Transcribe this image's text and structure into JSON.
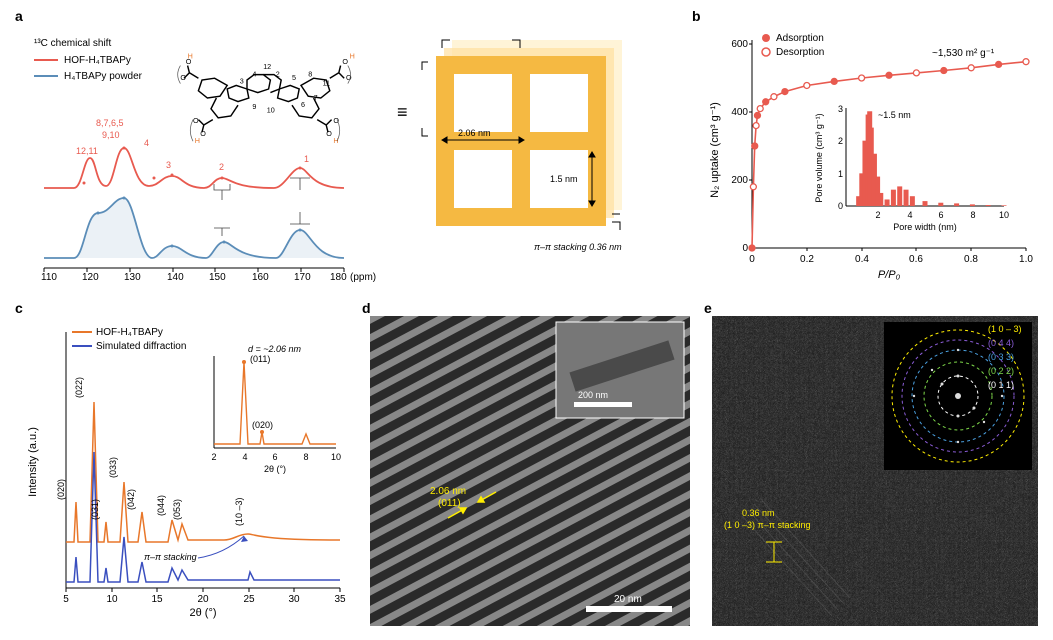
{
  "panel_a": {
    "label": "a",
    "title": "¹³C chemical shift",
    "legend": [
      {
        "label": "HOF-H₄TBAPy",
        "color": "#e85a4f"
      },
      {
        "label": "H₄TBAPy powder",
        "color": "#5b8db8"
      }
    ],
    "x_axis": {
      "label": "(ppm)",
      "min": 110,
      "max": 180,
      "ticks": [
        110,
        120,
        130,
        140,
        150,
        160,
        170,
        180
      ]
    },
    "top_peak_labels": [
      "12,11",
      "9,10",
      "4",
      "3",
      "2",
      "1"
    ],
    "group_label": "8,7,6,5",
    "schematic": {
      "cell_size": "2.06 nm",
      "pore_size": "1.5 nm",
      "stacking": "π–π stacking 0.36 nm",
      "atom_numbers": [
        "1",
        "2",
        "3",
        "4",
        "5",
        "6",
        "7",
        "8",
        "9",
        "10",
        "11",
        "12"
      ]
    },
    "colors": {
      "schematic_fill": "#f5b942",
      "schematic_glow": "#ffe9b0"
    }
  },
  "panel_b": {
    "label": "b",
    "legend": [
      {
        "label": "Adsorption",
        "color": "#e85a4f",
        "filled": true
      },
      {
        "label": "Desorption",
        "color": "#e85a4f",
        "filled": false
      }
    ],
    "surface_area": "~1,530 m² g⁻¹",
    "x_axis": {
      "label": "P/P₀",
      "min": 0,
      "max": 1.0,
      "ticks": [
        0,
        0.2,
        0.4,
        0.6,
        0.8,
        1.0
      ]
    },
    "y_axis": {
      "label": "N₂ uptake (cm³ g⁻¹)",
      "min": 0,
      "max": 600,
      "ticks": [
        0,
        200,
        400,
        600
      ]
    },
    "isotherm_points": [
      [
        0,
        0
      ],
      [
        0.005,
        180
      ],
      [
        0.01,
        300
      ],
      [
        0.015,
        360
      ],
      [
        0.02,
        390
      ],
      [
        0.03,
        410
      ],
      [
        0.05,
        430
      ],
      [
        0.08,
        445
      ],
      [
        0.12,
        460
      ],
      [
        0.2,
        478
      ],
      [
        0.3,
        490
      ],
      [
        0.4,
        500
      ],
      [
        0.5,
        508
      ],
      [
        0.6,
        515
      ],
      [
        0.7,
        522
      ],
      [
        0.8,
        530
      ],
      [
        0.9,
        540
      ],
      [
        1.0,
        548
      ]
    ],
    "inset": {
      "x_axis": {
        "label": "Pore width (nm)",
        "min": 0,
        "max": 10,
        "ticks": [
          2,
          4,
          6,
          8,
          10
        ]
      },
      "y_axis": {
        "label": "Pore volume (cm³ g⁻¹)",
        "min": 0,
        "max": 3,
        "ticks": [
          0,
          1,
          2,
          3
        ]
      },
      "peak_label": "~1.5 nm",
      "bars": [
        [
          0.8,
          0.3
        ],
        [
          1.0,
          1.0
        ],
        [
          1.2,
          2.0
        ],
        [
          1.4,
          2.8
        ],
        [
          1.5,
          2.9
        ],
        [
          1.6,
          2.4
        ],
        [
          1.8,
          1.6
        ],
        [
          2.0,
          0.9
        ],
        [
          2.2,
          0.4
        ],
        [
          2.6,
          0.2
        ],
        [
          3.0,
          0.5
        ],
        [
          3.4,
          0.6
        ],
        [
          3.8,
          0.5
        ],
        [
          4.2,
          0.3
        ],
        [
          5.0,
          0.15
        ],
        [
          6.0,
          0.1
        ],
        [
          7.0,
          0.08
        ],
        [
          8.0,
          0.05
        ],
        [
          9.0,
          0.03
        ],
        [
          10.0,
          0.02
        ]
      ]
    },
    "colors": {
      "line": "#e85a4f",
      "marker": "#e85a4f"
    }
  },
  "panel_c": {
    "label": "c",
    "legend": [
      {
        "label": "HOF-H₄TBAPy",
        "color": "#e8772a"
      },
      {
        "label": "Simulated diffraction",
        "color": "#3a4fbf"
      }
    ],
    "x_axis": {
      "label": "2θ (°)",
      "min": 5,
      "max": 35,
      "ticks": [
        5,
        10,
        15,
        20,
        25,
        30,
        35
      ]
    },
    "y_axis": {
      "label": "Intensity (a.u.)"
    },
    "peak_labels": [
      "(020)",
      "(022)",
      "(031)",
      "(033)",
      "(042)",
      "(044)",
      "(053)",
      "(10 –3)"
    ],
    "stacking_label": "π–π stacking",
    "inset": {
      "x_axis": {
        "label": "2θ (°)",
        "min": 2,
        "max": 10,
        "ticks": [
          2,
          4,
          6,
          8,
          10
        ]
      },
      "peak_main": "(011)",
      "d_spacing": "d = ~2.06 nm",
      "peak_secondary": "(020)"
    }
  },
  "panel_d": {
    "label": "d",
    "fringe_spacing": "2.06 nm",
    "fringe_plane": "(011)",
    "scale_bar": "20 nm",
    "inset_scale": "200 nm",
    "colors": {
      "annotation": "#ffee00",
      "scale_bar": "#ffffff"
    }
  },
  "panel_e": {
    "label": "e",
    "fringe_spacing": "0.36 nm",
    "fringe_plane": "(1 0 –3) π–π stacking",
    "rings": [
      {
        "label": "(1 0 – 3)",
        "color": "#ffee00"
      },
      {
        "label": "(0 4 4)",
        "color": "#8a5cd6"
      },
      {
        "label": "(0 3 3)",
        "color": "#4aa0e0"
      },
      {
        "label": "(0 2 2)",
        "color": "#7fd94a"
      },
      {
        "label": "(0 1 1)",
        "color": "#ffffff"
      }
    ],
    "colors": {
      "annotation": "#ffee00"
    }
  }
}
